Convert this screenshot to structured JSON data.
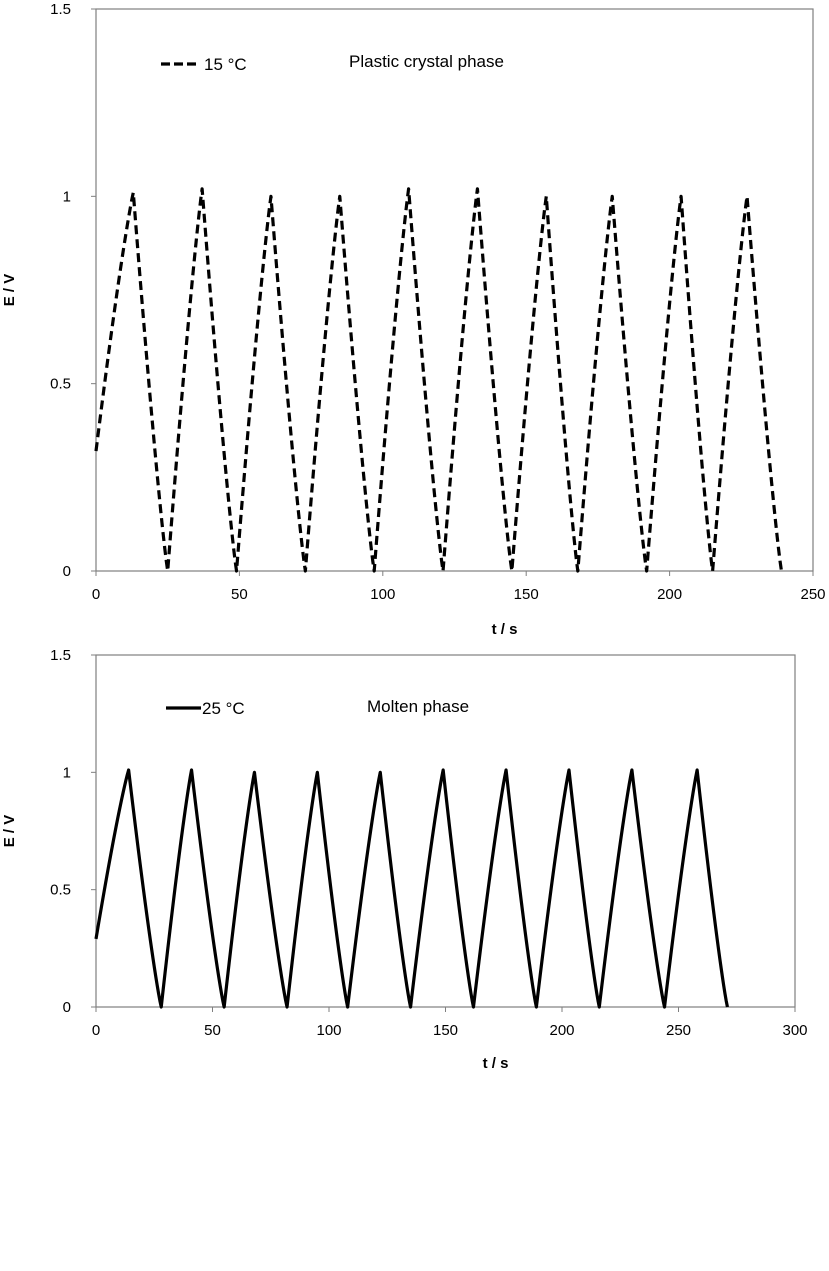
{
  "chart_data": [
    {
      "type": "line",
      "title": "",
      "xlabel": "t / s",
      "ylabel": "E / V",
      "xlim": [
        0,
        250
      ],
      "ylim": [
        0,
        1.5
      ],
      "xticks": [
        0,
        50,
        100,
        150,
        200,
        250
      ],
      "yticks": [
        0,
        0.5,
        1,
        1.5
      ],
      "grid": false,
      "line_style": "dashed",
      "color": "#000000",
      "legend_position": "top-left",
      "annotation": "Plastic crystal phase",
      "series": [
        {
          "name": "15 °C",
          "start": [
            0,
            0.32
          ],
          "cycles": [
            {
              "peak_t": 13,
              "peak_e": 1.01,
              "end_t": 25
            },
            {
              "peak_t": 37,
              "peak_e": 1.02,
              "end_t": 49
            },
            {
              "peak_t": 61,
              "peak_e": 1.0,
              "end_t": 73
            },
            {
              "peak_t": 85,
              "peak_e": 1.0,
              "end_t": 97
            },
            {
              "peak_t": 109,
              "peak_e": 1.02,
              "end_t": 121
            },
            {
              "peak_t": 133,
              "peak_e": 1.02,
              "end_t": 145
            },
            {
              "peak_t": 157,
              "peak_e": 1.0,
              "end_t": 168
            },
            {
              "peak_t": 180,
              "peak_e": 1.0,
              "end_t": 192
            },
            {
              "peak_t": 204,
              "peak_e": 1.0,
              "end_t": 215
            },
            {
              "peak_t": 227,
              "peak_e": 1.0,
              "end_t": 239
            }
          ]
        }
      ]
    },
    {
      "type": "line",
      "title": "",
      "xlabel": "t / s",
      "ylabel": "E / V",
      "xlim": [
        0,
        300
      ],
      "ylim": [
        0,
        1.5
      ],
      "xticks": [
        0,
        50,
        100,
        150,
        200,
        250,
        300
      ],
      "yticks": [
        0,
        0.5,
        1,
        1.5
      ],
      "grid": false,
      "line_style": "solid",
      "color": "#000000",
      "legend_position": "top-left",
      "annotation": "Molten phase",
      "series": [
        {
          "name": "25 °C",
          "start": [
            0,
            0.29
          ],
          "cycles": [
            {
              "peak_t": 14,
              "peak_e": 1.01,
              "end_t": 28
            },
            {
              "peak_t": 41,
              "peak_e": 1.01,
              "end_t": 55
            },
            {
              "peak_t": 68,
              "peak_e": 1.0,
              "end_t": 82
            },
            {
              "peak_t": 95,
              "peak_e": 1.0,
              "end_t": 108
            },
            {
              "peak_t": 122,
              "peak_e": 1.0,
              "end_t": 135
            },
            {
              "peak_t": 149,
              "peak_e": 1.01,
              "end_t": 162
            },
            {
              "peak_t": 176,
              "peak_e": 1.01,
              "end_t": 189
            },
            {
              "peak_t": 203,
              "peak_e": 1.01,
              "end_t": 216
            },
            {
              "peak_t": 230,
              "peak_e": 1.01,
              "end_t": 244
            },
            {
              "peak_t": 258,
              "peak_e": 1.01,
              "end_t": 271
            }
          ]
        }
      ]
    }
  ]
}
